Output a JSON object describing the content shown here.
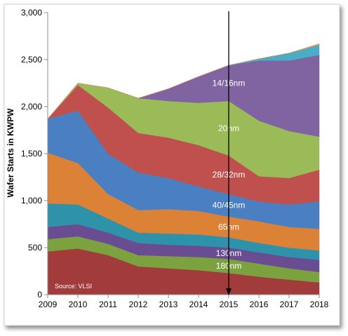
{
  "chart_data": {
    "type": "area",
    "stacked": true,
    "x": [
      2009,
      2010,
      2011,
      2012,
      2013,
      2014,
      2015,
      2016,
      2017,
      2018
    ],
    "x_tick_labels": [
      "2009",
      "2010",
      "2011",
      "2012",
      "2013",
      "2014",
      "2015",
      "2016",
      "2017",
      "2018"
    ],
    "ylabel": "Wafer Starts in KWPW",
    "xlabel": "",
    "ylim": [
      0,
      3000
    ],
    "y_ticks": [
      0,
      500,
      1000,
      1500,
      2000,
      2500,
      3000
    ],
    "y_tick_labels": [
      "0",
      "500",
      "1,000",
      "1,500",
      "2,000",
      "2,500",
      "3,000"
    ],
    "grid": false,
    "source_note": "Source: VLSI",
    "marker_year": 2015,
    "series": [
      {
        "label": "",
        "color": "#A23B3B",
        "values": [
          460,
          490,
          420,
          300,
          280,
          260,
          230,
          190,
          160,
          130
        ]
      },
      {
        "label": "180nm",
        "color": "#7BA23F",
        "values": [
          130,
          130,
          120,
          120,
          130,
          140,
          150,
          140,
          120,
          110
        ]
      },
      {
        "label": "130nm",
        "color": "#6A4C93",
        "values": [
          130,
          130,
          120,
          130,
          120,
          120,
          120,
          120,
          120,
          130
        ]
      },
      {
        "label": "",
        "color": "#2E93AA",
        "values": [
          250,
          210,
          150,
          110,
          120,
          120,
          110,
          100,
          100,
          100
        ]
      },
      {
        "label": "65nm",
        "color": "#DC8236",
        "values": [
          540,
          440,
          260,
          240,
          260,
          250,
          220,
          230,
          220,
          230
        ]
      },
      {
        "label": "40/45nm",
        "color": "#4A7FC1",
        "values": [
          360,
          560,
          430,
          400,
          330,
          260,
          240,
          210,
          240,
          290
        ]
      },
      {
        "label": "28/32nm",
        "color": "#C0504D",
        "values": [
          0,
          270,
          490,
          420,
          430,
          440,
          410,
          270,
          280,
          340
        ]
      },
      {
        "label": "20nm",
        "color": "#9BBB59",
        "values": [
          0,
          20,
          210,
          370,
          390,
          450,
          580,
          590,
          500,
          350
        ]
      },
      {
        "label": "14/16nm",
        "color": "#8064A2",
        "values": [
          0,
          0,
          0,
          0,
          130,
          280,
          380,
          640,
          750,
          870
        ]
      },
      {
        "label": "",
        "color": "#4BACC6",
        "values": [
          0,
          0,
          0,
          0,
          0,
          0,
          0,
          20,
          80,
          110
        ]
      },
      {
        "label": "",
        "color": "#F79646",
        "values": [
          0,
          0,
          0,
          0,
          0,
          0,
          0,
          0,
          0,
          10
        ]
      }
    ]
  }
}
